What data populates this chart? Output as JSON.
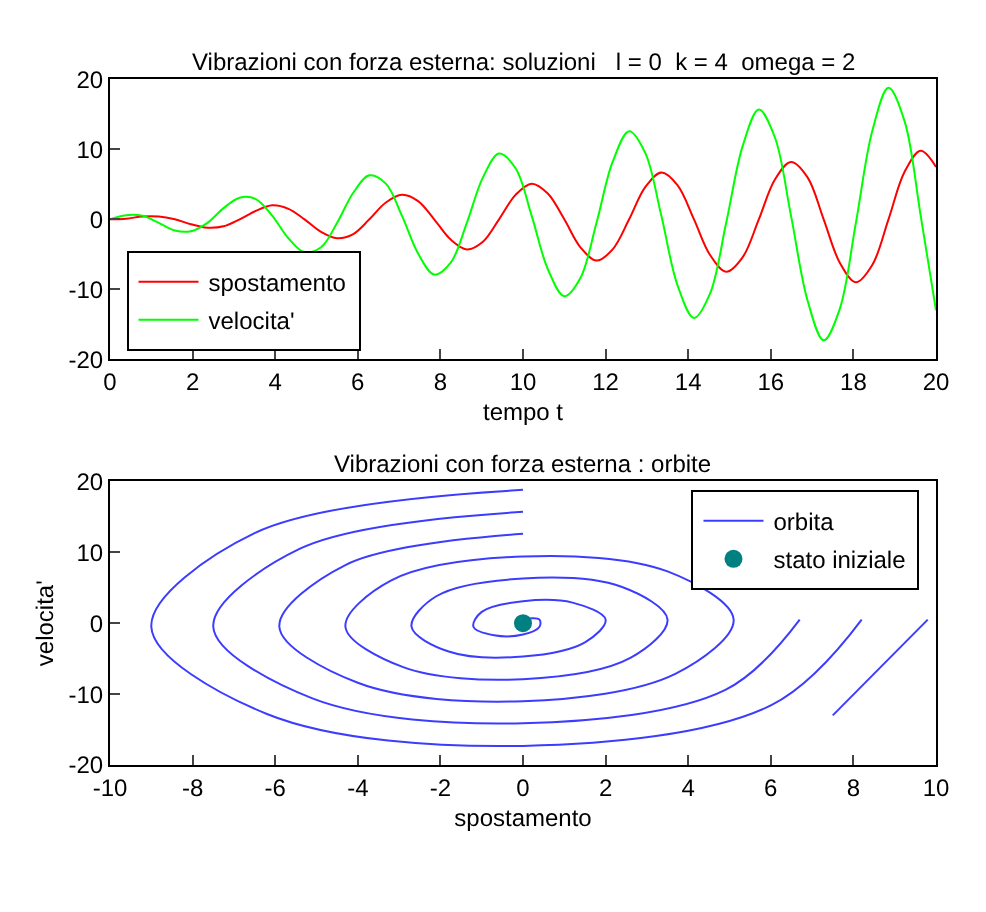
{
  "chart_data": [
    {
      "type": "line",
      "title": "Vibrazioni con forza esterna: soluzioni   l = 0  k = 4  omega = 2",
      "xlabel": "tempo t",
      "x": [
        0,
        0.39,
        0.79,
        1.18,
        1.57,
        1.96,
        2.36,
        2.75,
        3.14,
        3.53,
        3.93,
        4.32,
        4.71,
        5.11,
        5.5,
        5.89,
        6.28,
        6.68,
        7.07,
        7.46,
        7.85,
        8.25,
        8.64,
        9.03,
        9.42,
        9.82,
        10.21,
        10.6,
        11.0,
        11.39,
        11.78,
        12.17,
        12.57,
        12.96,
        13.35,
        13.74,
        14.14,
        14.53,
        14.92,
        15.32,
        15.71,
        16.1,
        16.49,
        16.89,
        17.28,
        17.67,
        18.06,
        18.46,
        18.85,
        19.24,
        19.63,
        20
      ],
      "series": [
        {
          "name": "spostamento",
          "color": "#ff0000",
          "values": [
            0,
            0.1,
            0.4,
            0.4,
            0,
            -0.7,
            -1.2,
            -1,
            0,
            1.2,
            2,
            1.5,
            0,
            -1.8,
            -2.7,
            -2.1,
            0,
            2.4,
            3.5,
            2.6,
            0,
            -2.9,
            -4.3,
            -3.2,
            0,
            3.5,
            5.1,
            3.7,
            0,
            -4,
            -5.9,
            -4.3,
            0,
            4.6,
            6.7,
            4.9,
            0,
            -5.1,
            -7.5,
            -5.4,
            0,
            5.7,
            8.2,
            6,
            0,
            -6.2,
            -9,
            -6.5,
            0,
            6.8,
            9.8,
            7.5
          ]
        },
        {
          "name": "velocita'",
          "color": "#00ff00",
          "values": [
            0,
            0.6,
            0.5,
            -0.5,
            -1.6,
            -1.7,
            -0.5,
            1.6,
            3.1,
            2.9,
            0.5,
            -2.7,
            -4.7,
            -4,
            -0.5,
            3.8,
            6.3,
            5.1,
            0.5,
            -4.9,
            -7.9,
            -6.2,
            -0.5,
            6,
            9.4,
            7.3,
            0.5,
            -7.1,
            -11,
            -8.4,
            -0.5,
            8.2,
            12.6,
            9.5,
            0.5,
            -9.4,
            -14.1,
            -10.6,
            -0.5,
            10.5,
            15.7,
            11.7,
            0.5,
            -11.6,
            -17.3,
            -12.8,
            -0.5,
            12.7,
            18.8,
            14,
            0.5,
            -13
          ]
        }
      ],
      "xlim": [
        0,
        20
      ],
      "xticks": [
        0,
        2,
        4,
        6,
        8,
        10,
        12,
        14,
        16,
        18,
        20
      ],
      "ylim": [
        -20,
        20
      ],
      "yticks": [
        -20,
        -10,
        0,
        10,
        20
      ],
      "legend": "bottom left",
      "marker": "none",
      "line_style": "solid"
    },
    {
      "type": "line",
      "title": "Vibrazioni con forza esterna : orbite",
      "xlabel": "spostamento",
      "ylabel": "velocita'",
      "series": [
        {
          "name": "orbita",
          "color": "#3c3cff",
          "x": [
            0,
            0.1,
            0.4,
            0.4,
            0,
            -0.7,
            -1.2,
            -1,
            0,
            1.2,
            2,
            1.5,
            0,
            -1.8,
            -2.7,
            -2.1,
            0,
            2.4,
            3.5,
            2.6,
            0,
            -2.9,
            -4.3,
            -3.2,
            0,
            3.5,
            5.1,
            3.7,
            0,
            -4,
            -5.9,
            -4.3,
            0,
            4.6,
            6.7,
            4.9,
            0,
            -5.1,
            -7.5,
            -5.4,
            0,
            5.7,
            8.2,
            6,
            0,
            -6.2,
            -9,
            -6.5,
            0,
            6.8,
            9.8,
            7.5
          ],
          "values": [
            0,
            0.6,
            0.5,
            -0.5,
            -1.6,
            -1.7,
            -0.5,
            1.6,
            3.1,
            2.9,
            0.5,
            -2.7,
            -4.7,
            -4,
            -0.5,
            3.8,
            6.3,
            5.1,
            0.5,
            -4.9,
            -7.9,
            -6.2,
            -0.5,
            6,
            9.4,
            7.3,
            0.5,
            -7.1,
            -11,
            -8.4,
            -0.5,
            8.2,
            12.6,
            null,
            0.5,
            -9.4,
            -14.1,
            -10.6,
            -0.5,
            10.5,
            15.7,
            null,
            0.5,
            -11.6,
            -17.3,
            -12.8,
            -0.5,
            12.7,
            18.8,
            null,
            0.5,
            -13
          ]
        },
        {
          "name": "stato iniziale",
          "color": "#008080",
          "type": "scatter",
          "marker": "circle",
          "x": [
            0
          ],
          "values": [
            0
          ]
        }
      ],
      "xlim": [
        -10,
        10
      ],
      "xticks": [
        -10,
        -8,
        -6,
        -4,
        -2,
        0,
        2,
        4,
        6,
        8,
        10
      ],
      "ylim": [
        -20,
        20
      ],
      "yticks": [
        -20,
        -10,
        0,
        10,
        20
      ],
      "legend": "top right",
      "marker": "none",
      "line_style": "solid"
    }
  ]
}
